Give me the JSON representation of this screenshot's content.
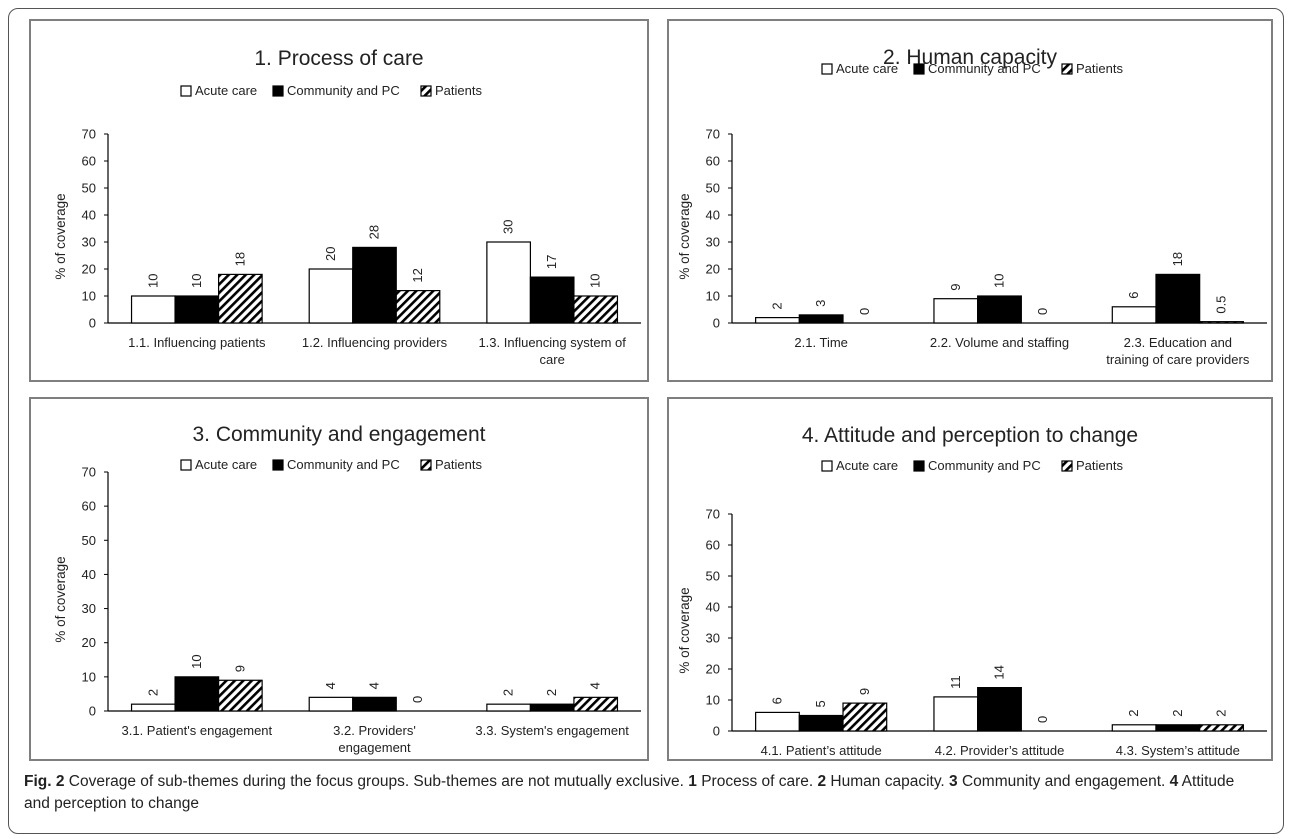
{
  "legend": {
    "acute": "Acute care",
    "community": "Community and PC",
    "patients": "Patients"
  },
  "colors": {
    "acute": "#ffffff",
    "community": "#000000",
    "patients": "hatch",
    "axis": "#000000",
    "panel_border": "#7f7f7f"
  },
  "chart_data": [
    {
      "type": "bar",
      "title": "1. Process of care",
      "ylabel": "% of coverage",
      "ylim": [
        0,
        70
      ],
      "yticks": [
        0,
        10,
        20,
        30,
        40,
        50,
        60,
        70
      ],
      "categories": [
        "1.1. Influencing patients",
        "1.2. Influencing providers",
        "1.3. Influencing system of care"
      ],
      "series": [
        {
          "name": "Acute care",
          "values": [
            10,
            20,
            30
          ],
          "labels": [
            "10",
            "20",
            "30"
          ]
        },
        {
          "name": "Community and PC",
          "values": [
            10,
            28,
            17
          ],
          "labels": [
            "10",
            "28",
            "17"
          ]
        },
        {
          "name": "Patients",
          "values": [
            18,
            12,
            10
          ],
          "labels": [
            "18",
            "12",
            "10"
          ]
        }
      ],
      "legend_position": "top"
    },
    {
      "type": "bar",
      "title": "2. Human  capacity",
      "ylabel": "% of coverage",
      "ylim": [
        0,
        70
      ],
      "yticks": [
        0,
        10,
        20,
        30,
        40,
        50,
        60,
        70
      ],
      "categories": [
        "2.1. Time",
        "2.2. Volume and staffing",
        "2.3. Education and training of care providers"
      ],
      "series": [
        {
          "name": "Acute care",
          "values": [
            2,
            9,
            6
          ],
          "labels": [
            "2",
            "9",
            "6"
          ]
        },
        {
          "name": "Community and PC",
          "values": [
            3,
            10,
            18
          ],
          "labels": [
            "3",
            "10",
            "18"
          ]
        },
        {
          "name": "Patients",
          "values": [
            0,
            0,
            0.5
          ],
          "labels": [
            "0",
            "0",
            "0.5"
          ]
        }
      ],
      "legend_position": "top"
    },
    {
      "type": "bar",
      "title": "3. Community and engagement",
      "ylabel": "% of coverage",
      "ylim": [
        0,
        70
      ],
      "yticks": [
        0,
        10,
        20,
        30,
        40,
        50,
        60,
        70
      ],
      "categories": [
        "3.1. Patient's engagement",
        "3.2. Providers' engagement",
        "3.3. System's engagement"
      ],
      "series": [
        {
          "name": "Acute care",
          "values": [
            2,
            4,
            2
          ],
          "labels": [
            "2",
            "4",
            "2"
          ]
        },
        {
          "name": "Community and PC",
          "values": [
            10,
            4,
            2
          ],
          "labels": [
            "10",
            "4",
            "2"
          ]
        },
        {
          "name": "Patients",
          "values": [
            9,
            0,
            4
          ],
          "labels": [
            "9",
            "0",
            "4"
          ]
        }
      ],
      "legend_position": "top"
    },
    {
      "type": "bar",
      "title": "4. Attitude and perception to change",
      "ylabel": "% of coverage",
      "ylim": [
        0,
        70
      ],
      "yticks": [
        0,
        10,
        20,
        30,
        40,
        50,
        60,
        70
      ],
      "categories": [
        "4.1. Patient’s attitude",
        "4.2. Provider’s attitude",
        "4.3. System’s attitude"
      ],
      "series": [
        {
          "name": "Acute care",
          "values": [
            6,
            11,
            2
          ],
          "labels": [
            "6",
            "11",
            "2"
          ]
        },
        {
          "name": "Community and PC",
          "values": [
            5,
            14,
            2
          ],
          "labels": [
            "5",
            "14",
            "2"
          ]
        },
        {
          "name": "Patients",
          "values": [
            9,
            0,
            2
          ],
          "labels": [
            "9",
            "0",
            "2"
          ]
        }
      ],
      "legend_position": "top"
    }
  ],
  "caption": {
    "fig_label": "Fig. 2",
    "text_1": " Coverage of sub-themes during the focus groups. Sub-themes are not mutually exclusive. ",
    "n1": "1",
    "text_2": " Process of care. ",
    "n2": "2",
    "text_3": " Human capacity. ",
    "n3": "3",
    "text_4": " Community and engagement. ",
    "n4": "4",
    "text_5": " Attitude and perception to change"
  }
}
